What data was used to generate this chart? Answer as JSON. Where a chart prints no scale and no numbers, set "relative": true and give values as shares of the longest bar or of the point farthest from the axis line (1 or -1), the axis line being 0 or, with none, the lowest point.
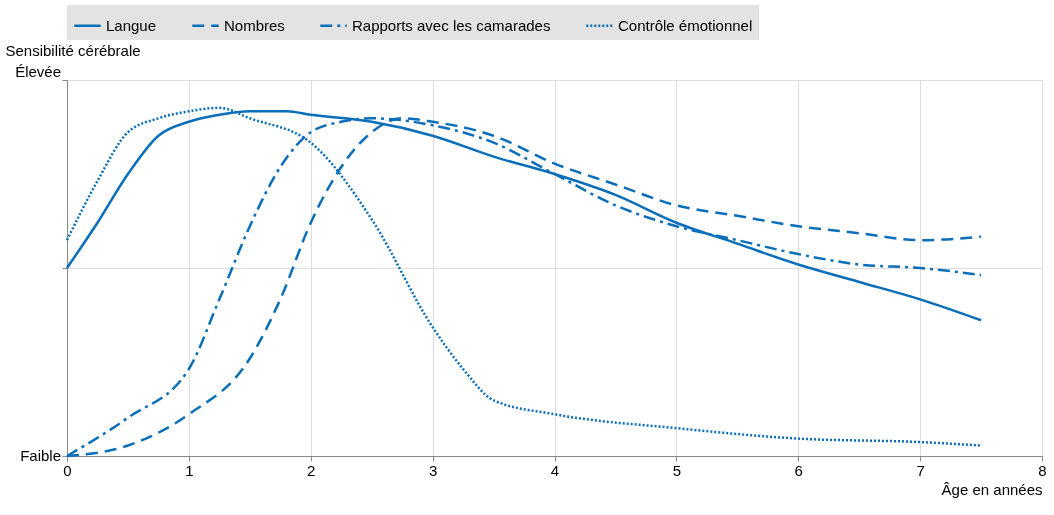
{
  "chart_data": {
    "type": "line",
    "xlabel": "Âge en années",
    "ylabel": "Sensibilité cérébrale",
    "relative": true,
    "annotations": [
      "Faible",
      "Élevée"
    ],
    "xlim": [
      0,
      8
    ],
    "xticks": [
      0,
      1,
      2,
      3,
      4,
      5,
      6,
      7,
      8
    ],
    "grid": true,
    "legend": "top",
    "series": [
      {
        "name": "Langue",
        "color": "#0a6eb9",
        "line_style": "solid",
        "x": [
          0,
          0.25,
          0.5,
          0.75,
          1,
          1.25,
          1.5,
          1.8,
          2,
          2.5,
          3,
          3.5,
          4,
          4.5,
          5,
          5.5,
          6,
          6.5,
          7,
          7.5
        ],
        "values": [
          0.54,
          0.67,
          0.81,
          0.92,
          0.96,
          0.98,
          0.99,
          0.99,
          0.98,
          0.96,
          0.92,
          0.86,
          0.81,
          0.75,
          0.67,
          0.61,
          0.55,
          0.5,
          0.45,
          0.39
        ]
      },
      {
        "name": "Nombres",
        "color": "#0a6eb9",
        "line_style": "dashed",
        "x": [
          0,
          0.5,
          1,
          1.5,
          1.75,
          2,
          2.25,
          2.5,
          2.75,
          3,
          3.5,
          4,
          4.5,
          5,
          5.5,
          6,
          6.5,
          7,
          7.5
        ],
        "values": [
          0,
          0.03,
          0.12,
          0.28,
          0.45,
          0.67,
          0.83,
          0.93,
          0.97,
          0.96,
          0.92,
          0.84,
          0.78,
          0.72,
          0.69,
          0.66,
          0.64,
          0.62,
          0.63
        ]
      },
      {
        "name": "Rapports avec les camarades",
        "color": "#0a6eb9",
        "line_style": "dashdot",
        "x": [
          0,
          0.5,
          1,
          1.25,
          1.5,
          1.75,
          2,
          2.25,
          2.5,
          3,
          3.5,
          4,
          4.5,
          5,
          5.5,
          6,
          6.5,
          7,
          7.5
        ],
        "values": [
          0,
          0.11,
          0.25,
          0.45,
          0.66,
          0.83,
          0.93,
          0.96,
          0.97,
          0.95,
          0.9,
          0.81,
          0.72,
          0.66,
          0.62,
          0.58,
          0.55,
          0.54,
          0.52
        ]
      },
      {
        "name": "Contrôle émotionnel",
        "color": "#0a6eb9",
        "line_style": "dotted",
        "x": [
          0,
          0.25,
          0.5,
          0.75,
          1,
          1.25,
          1.5,
          2,
          2.5,
          3,
          3.25,
          3.5,
          4,
          5,
          6,
          7,
          7.5
        ],
        "values": [
          0.62,
          0.79,
          0.93,
          0.97,
          0.99,
          1,
          0.97,
          0.9,
          0.68,
          0.37,
          0.25,
          0.16,
          0.12,
          0.08,
          0.05,
          0.04,
          0.03
        ]
      }
    ]
  }
}
